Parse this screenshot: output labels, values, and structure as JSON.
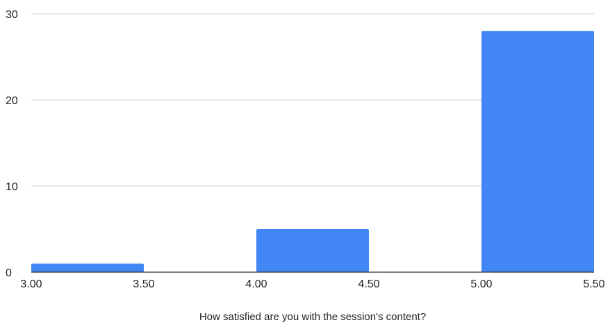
{
  "chart_data": {
    "type": "bar",
    "title": "",
    "xlabel": "How satisfied are you with the session's content?",
    "ylabel": "",
    "bins": [
      {
        "x0": 3.0,
        "x1": 3.5,
        "value": 1
      },
      {
        "x0": 4.0,
        "x1": 4.5,
        "value": 5
      },
      {
        "x0": 5.0,
        "x1": 5.5,
        "value": 28
      }
    ],
    "xlim": [
      3.0,
      5.5
    ],
    "ylim": [
      0,
      30
    ],
    "x_ticks": [
      "3.00",
      "3.50",
      "4.00",
      "4.50",
      "5.00",
      "5.50"
    ],
    "y_ticks": [
      "0",
      "10",
      "20",
      "30"
    ],
    "grid": true,
    "legend": "none",
    "colors": {
      "bar": "#4285f4",
      "grid": "#cccccc",
      "axis": "#333333",
      "text": "#222222"
    }
  }
}
